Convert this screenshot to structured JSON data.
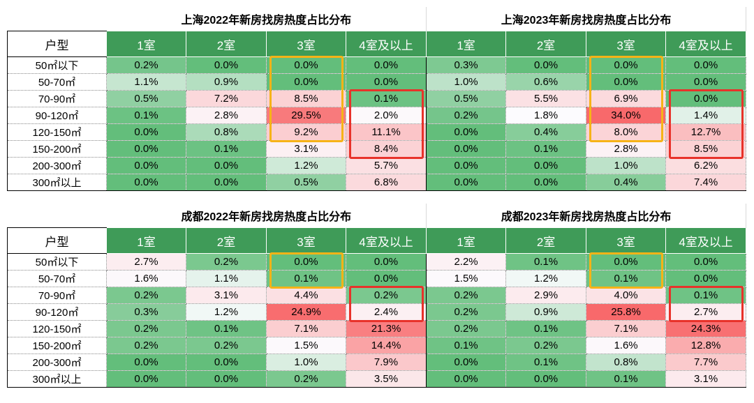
{
  "columns": [
    "户型",
    "1室",
    "2室",
    "3室",
    "4室及以上",
    "1室",
    "2室",
    "3室",
    "4室及以上"
  ],
  "row_labels": [
    "50㎡以下",
    "50-70㎡",
    "70-90㎡",
    "90-120㎡",
    "120-150㎡",
    "150-200㎡",
    "200-300㎡",
    "300㎡以上"
  ],
  "colors": {
    "header_green": "#3f9b58",
    "low_green": "#63be7b",
    "mid_white": "#fcfcff",
    "high_red": "#f8696b",
    "highlight_orange": "#f6b317",
    "highlight_red": "#e8322a"
  },
  "tables": [
    {
      "id": "top",
      "left_title": "上海2022年新房找房热度占比分布",
      "right_title": "上海2023年新房找房热度占比分布",
      "rows": [
        [
          "0.2%",
          "0.0%",
          "0.0%",
          "0.0%",
          "0.3%",
          "0.0%",
          "0.0%",
          "0.0%"
        ],
        [
          "1.1%",
          "0.9%",
          "0.0%",
          "0.0%",
          "1.0%",
          "0.6%",
          "0.0%",
          "0.0%"
        ],
        [
          "0.5%",
          "7.2%",
          "8.5%",
          "0.1%",
          "0.5%",
          "5.5%",
          "6.9%",
          "0.0%"
        ],
        [
          "0.1%",
          "2.8%",
          "29.5%",
          "2.0%",
          "0.2%",
          "1.8%",
          "34.0%",
          "1.4%"
        ],
        [
          "0.0%",
          "0.8%",
          "9.2%",
          "11.1%",
          "0.0%",
          "0.4%",
          "8.0%",
          "12.7%"
        ],
        [
          "0.0%",
          "0.1%",
          "3.1%",
          "8.4%",
          "0.0%",
          "0.1%",
          "2.8%",
          "8.5%"
        ],
        [
          "0.0%",
          "0.0%",
          "1.2%",
          "5.7%",
          "0.0%",
          "0.0%",
          "1.0%",
          "6.2%"
        ],
        [
          "0.0%",
          "0.0%",
          "0.5%",
          "6.8%",
          "0.0%",
          "0.0%",
          "0.4%",
          "7.4%"
        ]
      ],
      "highlights": [
        {
          "color": "orange",
          "col": 3,
          "row_from": 2,
          "row_to": 6
        },
        {
          "color": "red",
          "col": 4,
          "row_from": 4,
          "row_to": 7
        },
        {
          "color": "orange",
          "col": 7,
          "row_from": 2,
          "row_to": 6
        },
        {
          "color": "red",
          "col": 8,
          "row_from": 4,
          "row_to": 7
        }
      ]
    },
    {
      "id": "bot",
      "left_title": "成都2022年新房找房热度占比分布",
      "right_title": "成都2023年新房找房热度占比分布",
      "rows": [
        [
          "2.7%",
          "0.2%",
          "0.0%",
          "0.0%",
          "2.2%",
          "0.1%",
          "0.0%",
          "0.0%"
        ],
        [
          "1.6%",
          "1.1%",
          "0.1%",
          "0.0%",
          "1.5%",
          "1.2%",
          "0.1%",
          "0.0%"
        ],
        [
          "0.2%",
          "3.1%",
          "4.4%",
          "0.2%",
          "0.2%",
          "2.9%",
          "4.0%",
          "0.1%"
        ],
        [
          "0.3%",
          "1.2%",
          "24.9%",
          "2.4%",
          "0.2%",
          "0.9%",
          "25.8%",
          "2.7%"
        ],
        [
          "0.2%",
          "0.1%",
          "7.1%",
          "21.3%",
          "0.2%",
          "0.1%",
          "7.1%",
          "24.3%"
        ],
        [
          "0.2%",
          "0.2%",
          "1.5%",
          "14.4%",
          "0.1%",
          "0.2%",
          "1.6%",
          "12.8%"
        ],
        [
          "0.0%",
          "0.0%",
          "1.0%",
          "7.9%",
          "0.0%",
          "0.1%",
          "0.8%",
          "7.7%"
        ],
        [
          "0.0%",
          "0.0%",
          "0.2%",
          "3.5%",
          "0.0%",
          "0.0%",
          "0.1%",
          "3.1%"
        ]
      ],
      "highlights": [
        {
          "color": "orange",
          "col": 3,
          "row_from": 2,
          "row_to": 3
        },
        {
          "color": "red",
          "col": 4,
          "row_from": 4,
          "row_to": 5
        },
        {
          "color": "orange",
          "col": 7,
          "row_from": 2,
          "row_to": 3
        },
        {
          "color": "red",
          "col": 8,
          "row_from": 4,
          "row_to": 5
        }
      ]
    }
  ]
}
